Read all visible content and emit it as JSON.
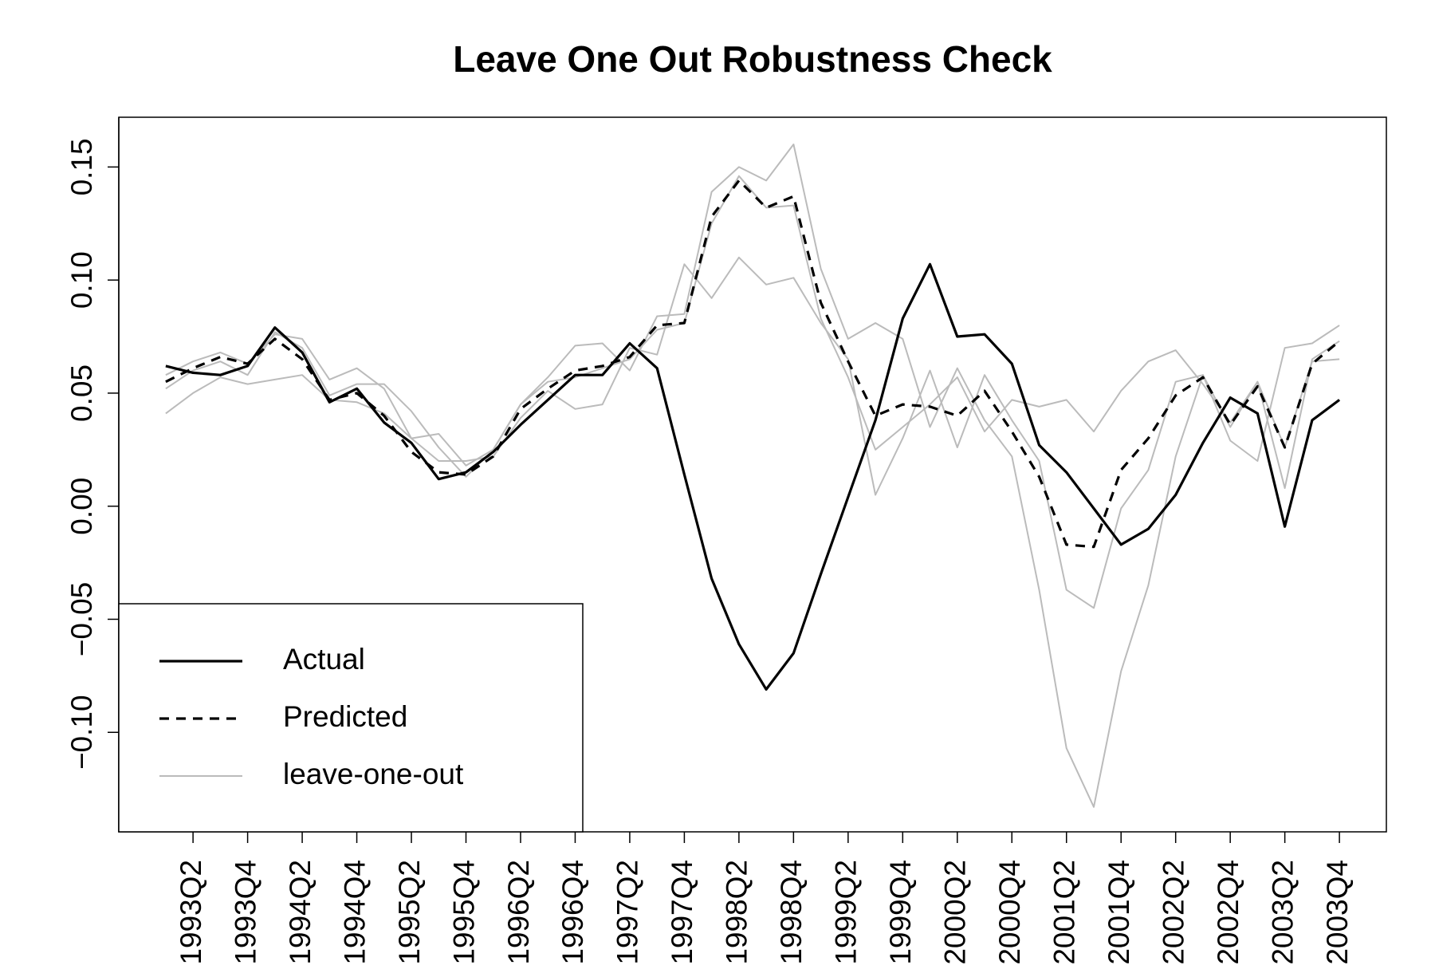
{
  "chart_data": {
    "type": "line",
    "title": "Leave One Out Robustness Check",
    "categories": [
      null,
      "1993Q2",
      null,
      "1993Q4",
      null,
      "1994Q2",
      null,
      "1994Q4",
      null,
      "1995Q2",
      null,
      "1995Q4",
      null,
      "1996Q2",
      null,
      "1996Q4",
      null,
      "1997Q2",
      null,
      "1997Q4",
      null,
      "1998Q2",
      null,
      "1998Q4",
      null,
      "1999Q2",
      null,
      "1999Q4",
      null,
      "2000Q2",
      null,
      "2000Q4",
      null,
      "2001Q2",
      null,
      "2001Q4",
      null,
      "2002Q2",
      null,
      "2002Q4",
      null,
      "2003Q2",
      null,
      "2003Q4"
    ],
    "ylim": [
      -0.144,
      0.172
    ],
    "yticks": [
      {
        "value": -0.1,
        "label": "−0.10"
      },
      {
        "value": -0.05,
        "label": "−0.05"
      },
      {
        "value": 0,
        "label": "0.00"
      },
      {
        "value": 0.05,
        "label": "0.05"
      },
      {
        "value": 0.1,
        "label": "0.10"
      },
      {
        "value": 0.15,
        "label": "0.15"
      }
    ],
    "legend": "bottom-left",
    "series": [
      {
        "name": "leave-one-out",
        "color": "#bbbbbb",
        "linestyle": "solid",
        "values": [
          0.058,
          0.064,
          0.068,
          0.063,
          0.076,
          0.074,
          0.056,
          0.061,
          0.052,
          0.03,
          0.032,
          0.018,
          0.025,
          0.045,
          0.057,
          0.071,
          0.072,
          0.06,
          0.084,
          0.085,
          0.139,
          0.15,
          0.144,
          0.16,
          0.105,
          0.074,
          0.081,
          0.074,
          0.035,
          0.061,
          0.038,
          0.022,
          -0.037,
          -0.107,
          -0.133,
          -0.073,
          -0.035,
          0.022,
          0.058,
          0.035,
          0.055,
          0.008,
          0.065,
          0.073
        ]
      },
      {
        "color": "#bbbbbb",
        "linestyle": "solid",
        "values": [
          0.052,
          0.06,
          0.064,
          0.058,
          0.077,
          0.07,
          0.049,
          0.054,
          0.054,
          0.042,
          0.026,
          0.013,
          0.025,
          0.045,
          0.055,
          0.057,
          0.061,
          0.065,
          0.078,
          0.081,
          0.125,
          0.146,
          0.132,
          0.133,
          0.083,
          0.057,
          0.025,
          0.035,
          0.045,
          0.057,
          0.033,
          0.047,
          0.044,
          0.047,
          0.033,
          0.051,
          0.064,
          0.069,
          0.054,
          0.037,
          0.055,
          0.026,
          0.064,
          0.065
        ]
      },
      {
        "color": "#bbbbbb",
        "linestyle": "solid",
        "values": [
          0.041,
          0.05,
          0.057,
          0.054,
          0.056,
          0.058,
          0.047,
          0.046,
          0.041,
          0.03,
          0.02,
          0.02,
          0.022,
          0.039,
          0.051,
          0.043,
          0.045,
          0.07,
          0.067,
          0.107,
          0.092,
          0.11,
          0.098,
          0.101,
          0.081,
          0.065,
          0.005,
          0.03,
          0.06,
          0.026,
          0.058,
          0.038,
          0.02,
          -0.037,
          -0.045,
          -0.001,
          0.016,
          0.055,
          0.058,
          0.029,
          0.02,
          0.07,
          0.072,
          0.08
        ]
      },
      {
        "name": "Predicted",
        "color": "#000000",
        "linestyle": "dashed",
        "values": [
          0.055,
          0.061,
          0.066,
          0.063,
          0.074,
          0.065,
          0.047,
          0.05,
          0.04,
          0.024,
          0.015,
          0.014,
          0.022,
          0.043,
          0.052,
          0.06,
          0.062,
          0.066,
          0.08,
          0.081,
          0.128,
          0.144,
          0.132,
          0.137,
          0.09,
          0.064,
          0.04,
          0.045,
          0.044,
          0.04,
          0.051,
          0.033,
          0.013,
          -0.017,
          -0.018,
          0.016,
          0.03,
          0.049,
          0.057,
          0.036,
          0.053,
          0.026,
          0.063,
          0.073
        ]
      },
      {
        "name": "Actual",
        "color": "#000000",
        "linestyle": "solid",
        "values": [
          0.062,
          0.059,
          0.058,
          0.062,
          0.079,
          0.068,
          0.046,
          0.052,
          0.037,
          0.028,
          0.012,
          0.015,
          0.024,
          0.036,
          0.047,
          0.058,
          0.058,
          0.072,
          0.061,
          0.014,
          -0.032,
          -0.061,
          -0.081,
          -0.065,
          -0.03,
          0.004,
          0.038,
          0.083,
          0.107,
          0.075,
          0.076,
          0.063,
          0.027,
          0.015,
          -0.001,
          -0.017,
          -0.01,
          0.005,
          0.028,
          0.048,
          0.041,
          -0.009,
          0.038,
          0.047
        ]
      }
    ]
  }
}
